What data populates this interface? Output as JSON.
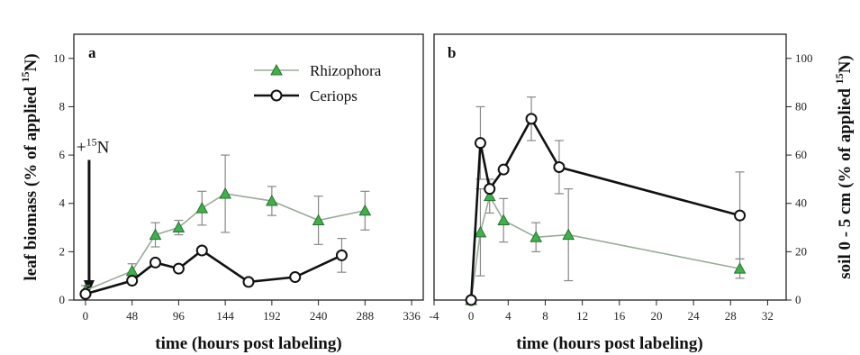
{
  "chart_data": [
    {
      "panel_label": "a",
      "type": "line",
      "xlabel": "time (hours post labeling)",
      "ylabel_parts": [
        "leaf biomass (% of applied ",
        "15",
        "N)"
      ],
      "xlim": [
        -12,
        348
      ],
      "ylim": [
        0,
        11
      ],
      "xticks": [
        0,
        48,
        96,
        144,
        192,
        240,
        288,
        336
      ],
      "yticks": [
        0,
        2,
        4,
        6,
        8,
        10
      ],
      "grid": false,
      "legend_position": "top-right",
      "annotation": {
        "prefix": "+",
        "sup": "15",
        "text": "N",
        "arrow_x": 0,
        "arrow_from_y": 5.8,
        "arrow_to_y": 0.3
      },
      "series": [
        {
          "name": "Rhizophora",
          "marker": "triangle",
          "color": "#9aaa9a",
          "marker_fill": "#3cb34a",
          "x": [
            0,
            48,
            72,
            96,
            120,
            144,
            192,
            240,
            288
          ],
          "y": [
            0.4,
            1.2,
            2.7,
            3.0,
            3.8,
            4.4,
            4.1,
            3.3,
            3.7
          ],
          "err": [
            0.2,
            0.3,
            0.5,
            0.3,
            0.7,
            1.6,
            0.6,
            1.0,
            0.8
          ]
        },
        {
          "name": "Ceriops",
          "marker": "circle",
          "color": "#111111",
          "marker_fill": "#ffffff",
          "x": [
            0,
            48,
            72,
            96,
            120,
            168,
            216,
            264
          ],
          "y": [
            0.25,
            0.8,
            1.55,
            1.3,
            2.05,
            0.75,
            0.95,
            1.85
          ],
          "err": [
            0,
            0,
            0,
            0,
            0,
            0,
            0,
            0.7
          ]
        }
      ]
    },
    {
      "panel_label": "b",
      "type": "line",
      "xlabel": "time (hours post labeling)",
      "ylabel_parts": [
        "soil 0 - 5 cm (% of applied ",
        "15",
        "N)"
      ],
      "xlim": [
        -4,
        34
      ],
      "ylim": [
        0,
        110
      ],
      "xticks": [
        -4,
        0,
        4,
        8,
        12,
        16,
        20,
        24,
        28,
        32
      ],
      "yticks": [
        0,
        20,
        40,
        60,
        80,
        100
      ],
      "grid": false,
      "series": [
        {
          "name": "Rhizophora",
          "marker": "triangle",
          "color": "#9aaa9a",
          "marker_fill": "#3cb34a",
          "x": [
            0,
            1,
            2,
            3.5,
            7,
            10.5,
            29
          ],
          "y": [
            0,
            28,
            43,
            33,
            26,
            27,
            13
          ],
          "err": [
            0,
            18,
            7,
            9,
            6,
            19,
            4
          ]
        },
        {
          "name": "Ceriops",
          "marker": "circle",
          "color": "#111111",
          "marker_fill": "#ffffff",
          "x": [
            0,
            1,
            2,
            3.5,
            6.5,
            9.5,
            29
          ],
          "y": [
            0,
            65,
            46,
            54,
            75,
            55,
            35
          ],
          "err": [
            0,
            15,
            0,
            0,
            9,
            11,
            18
          ]
        }
      ]
    }
  ]
}
